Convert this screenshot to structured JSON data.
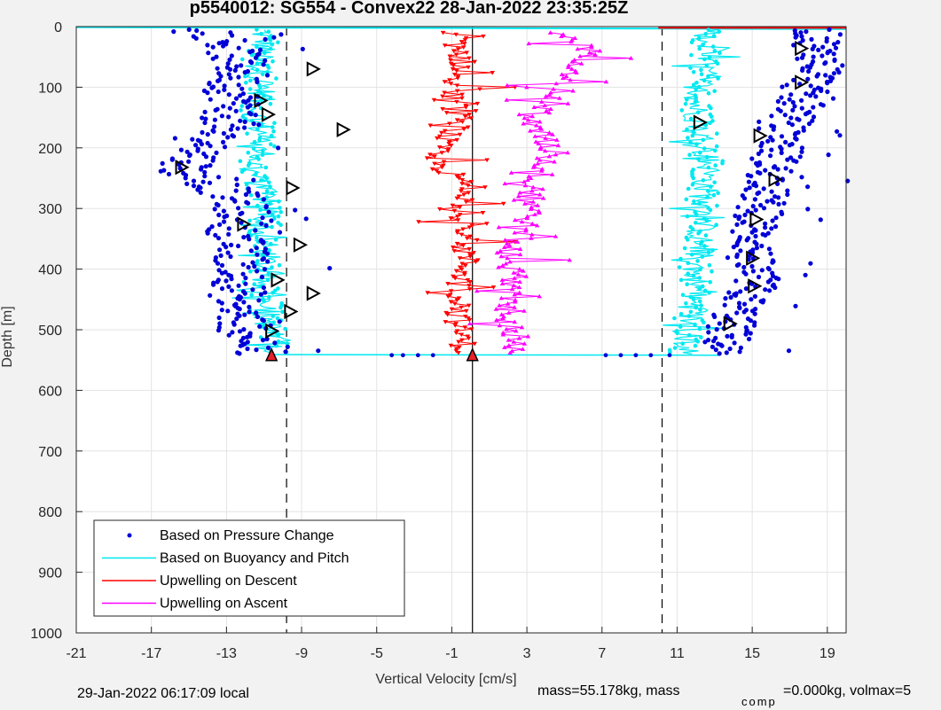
{
  "chart_data": {
    "type": "scatter",
    "title": "p5540012: SG554 - Convex22 28-Jan-2022 23:35:25Z",
    "xlabel": "Vertical Velocity [cm/s]",
    "ylabel": "Depth [m]",
    "xlim": [
      -21,
      20
    ],
    "ylim": [
      0,
      1000
    ],
    "y_reversed": true,
    "grid": true,
    "legend_placement": "bottom-left",
    "xticks": [
      -21,
      -17,
      -13,
      -9,
      -5,
      -1,
      3,
      7,
      11,
      15,
      19
    ],
    "yticks": [
      0,
      100,
      200,
      300,
      400,
      500,
      600,
      700,
      800,
      900,
      1000
    ],
    "xtick_labels": [
      "-21",
      "-17",
      "-13",
      "-9",
      "-5",
      "-1",
      "3",
      "7",
      "11",
      "15",
      "19"
    ],
    "ytick_labels": [
      "0",
      "100",
      "200",
      "300",
      "400",
      "500",
      "600",
      "700",
      "800",
      "900",
      "1000"
    ],
    "reference_lines": {
      "solid_x": 0.1,
      "dashed_x": [
        -9.8,
        10.2
      ]
    },
    "colors": {
      "pressure": "#0000d6",
      "buoyancy": "#00e8f0",
      "descent": "#ff0000",
      "ascent": "#ff00ff",
      "marker_red": "#e8202a"
    },
    "series": [
      {
        "name": "Based on Pressure Change",
        "style": "dots",
        "descent": {
          "y": [
            5,
            20,
            40,
            60,
            80,
            100,
            120,
            140,
            160,
            180,
            200,
            220,
            240,
            260,
            280,
            300,
            320,
            340,
            360,
            380,
            400,
            420,
            440,
            460,
            480,
            500,
            520,
            540
          ],
          "x": [
            -13.6,
            -13.2,
            -12.6,
            -12.4,
            -12.2,
            -12.8,
            -12.4,
            -12.7,
            -13.0,
            -13.8,
            -14.0,
            -14.8,
            -15.2,
            -13.6,
            -12.6,
            -12.2,
            -12.0,
            -12.6,
            -12.4,
            -12.2,
            -12.0,
            -12.2,
            -12.4,
            -12.6,
            -12.2,
            -12.0,
            -11.4,
            -11.0
          ]
        },
        "ascent": {
          "y": [
            5,
            20,
            40,
            60,
            80,
            100,
            120,
            140,
            160,
            180,
            200,
            220,
            240,
            260,
            280,
            300,
            320,
            340,
            360,
            380,
            400,
            420,
            440,
            460,
            480,
            500,
            520,
            540
          ],
          "x": [
            18.2,
            18.6,
            18.4,
            18.8,
            18.6,
            17.8,
            17.6,
            17.4,
            16.8,
            16.4,
            16.6,
            16.2,
            16.0,
            15.8,
            15.6,
            15.4,
            15.2,
            15.0,
            15.2,
            14.8,
            15.0,
            15.2,
            14.8,
            14.4,
            14.0,
            13.8,
            13.6,
            13.2
          ]
        }
      },
      {
        "name": "Based on Buoyancy and Pitch",
        "style": "line",
        "descent": {
          "y": [
            5,
            20,
            40,
            60,
            80,
            100,
            120,
            140,
            160,
            180,
            200,
            220,
            240,
            260,
            280,
            300,
            320,
            340,
            360,
            380,
            400,
            420,
            440,
            460,
            480,
            500,
            520,
            540
          ],
          "x": [
            -11.2,
            -11.0,
            -11.1,
            -11.4,
            -11.2,
            -11.0,
            -11.2,
            -11.4,
            -11.3,
            -11.1,
            -11.2,
            -11.4,
            -11.6,
            -11.3,
            -11.0,
            -10.8,
            -10.9,
            -11.2,
            -11.0,
            -10.9,
            -11.0,
            -11.2,
            -11.1,
            -10.9,
            -10.8,
            -10.7,
            -10.6,
            -10.5
          ]
        },
        "ascent": {
          "y": [
            5,
            20,
            40,
            60,
            80,
            100,
            120,
            140,
            160,
            180,
            200,
            220,
            240,
            260,
            280,
            300,
            320,
            340,
            360,
            380,
            400,
            420,
            440,
            460,
            480,
            500,
            520,
            540
          ],
          "x": [
            12.6,
            12.4,
            12.6,
            12.5,
            12.4,
            12.2,
            12.1,
            12.0,
            12.2,
            12.3,
            12.4,
            12.6,
            12.6,
            12.5,
            12.4,
            12.3,
            12.4,
            12.2,
            12.2,
            12.1,
            12.0,
            12.0,
            11.9,
            11.8,
            11.7,
            11.6,
            11.5,
            11.4
          ]
        }
      },
      {
        "name": "Upwelling on Descent",
        "style": "line-markers",
        "y": [
          10,
          20,
          40,
          60,
          80,
          100,
          120,
          140,
          160,
          180,
          200,
          220,
          240,
          260,
          280,
          300,
          320,
          340,
          360,
          380,
          400,
          420,
          440,
          460,
          480,
          500,
          520,
          540
        ],
        "x": [
          -1.5,
          -0.8,
          -0.6,
          -0.4,
          -0.6,
          -0.8,
          -1.0,
          -0.8,
          -0.4,
          -1.2,
          -1.8,
          -2.0,
          -1.2,
          -0.4,
          -0.2,
          -0.6,
          -0.3,
          -0.1,
          -0.4,
          -0.2,
          -0.3,
          -0.4,
          -0.6,
          -0.5,
          -0.7,
          -0.6,
          -0.4,
          -0.3
        ]
      },
      {
        "name": "Upwelling on Ascent",
        "style": "line-markers",
        "y": [
          10,
          20,
          40,
          60,
          80,
          100,
          120,
          140,
          160,
          180,
          200,
          220,
          240,
          260,
          280,
          300,
          320,
          340,
          360,
          380,
          400,
          420,
          440,
          460,
          480,
          500,
          520,
          540
        ],
        "x": [
          4.0,
          5.2,
          6.4,
          6.0,
          5.6,
          5.0,
          4.2,
          3.6,
          3.2,
          3.8,
          4.2,
          4.0,
          3.8,
          3.4,
          3.2,
          3.4,
          3.0,
          2.8,
          2.2,
          2.0,
          2.2,
          2.4,
          2.0,
          1.8,
          2.0,
          2.2,
          2.6,
          1.8
        ]
      }
    ],
    "markers": [
      {
        "x": -8.4,
        "y": 70
      },
      {
        "x": -11.2,
        "y": 122
      },
      {
        "x": -10.8,
        "y": 145
      },
      {
        "x": -6.8,
        "y": 170
      },
      {
        "x": -15.4,
        "y": 232
      },
      {
        "x": -9.5,
        "y": 266
      },
      {
        "x": -12.1,
        "y": 326
      },
      {
        "x": -9.1,
        "y": 360
      },
      {
        "x": -10.3,
        "y": 418
      },
      {
        "x": -8.4,
        "y": 440
      },
      {
        "x": -9.6,
        "y": 470
      },
      {
        "x": -10.6,
        "y": 502
      },
      {
        "x": 17.6,
        "y": 36
      },
      {
        "x": 17.6,
        "y": 92
      },
      {
        "x": 12.2,
        "y": 158
      },
      {
        "x": 15.4,
        "y": 180
      },
      {
        "x": 16.2,
        "y": 252
      },
      {
        "x": 15.2,
        "y": 318
      },
      {
        "x": 15.0,
        "y": 382
      },
      {
        "x": 15.1,
        "y": 428
      },
      {
        "x": 13.8,
        "y": 490
      }
    ],
    "bottom_markers": [
      {
        "x": -10.6,
        "y": 542,
        "color": "red"
      },
      {
        "x": 0.1,
        "y": 542,
        "color": "red"
      }
    ]
  },
  "footer": {
    "local_time": "29-Jan-2022 06:17:09 local",
    "mass": "mass=55.178kg, mass",
    "mass_sub": "comp",
    "comp": "=0.000kg, volmax=5"
  }
}
